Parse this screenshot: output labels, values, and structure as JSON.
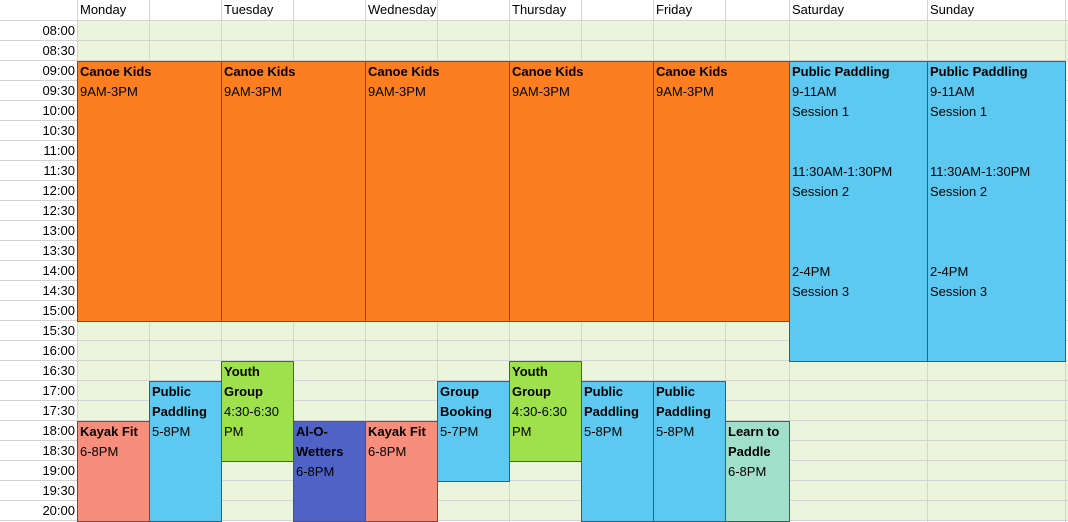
{
  "days": [
    "Monday",
    "Tuesday",
    "Wednesday",
    "Thursday",
    "Friday",
    "Saturday",
    "Sunday"
  ],
  "times": [
    "08:00",
    "08:30",
    "09:00",
    "09:30",
    "10:00",
    "10:30",
    "11:00",
    "11:30",
    "12:00",
    "12:30",
    "13:00",
    "13:30",
    "14:00",
    "14:30",
    "15:00",
    "15:30",
    "16:00",
    "16:30",
    "17:00",
    "17:30",
    "18:00",
    "18:30",
    "19:00",
    "19:30",
    "20:00"
  ],
  "colors": {
    "empty_slot": "#ebf5dc",
    "canoe_kids": "#fb7f21",
    "public_paddling": "#5dc9f1",
    "youth_group": "#9fe04d",
    "kayak_fit": "#f78e7c",
    "alo_wetters": "#4f62c6",
    "learn_to_paddle": "#a0dfca",
    "group_booking": "#5dc9f1"
  },
  "events": {
    "canoe_mon": {
      "title": "Canoe Kids",
      "time": "9AM-3PM"
    },
    "canoe_tue": {
      "title": "Canoe Kids",
      "time": "9AM-3PM"
    },
    "canoe_wed": {
      "title": "Canoe Kids",
      "time": "9AM-3PM"
    },
    "canoe_thu": {
      "title": "Canoe Kids",
      "time": "9AM-3PM"
    },
    "canoe_fri": {
      "title": "Canoe Kids",
      "time": "9AM-3PM"
    },
    "pp_sat": {
      "title": "Public Paddling",
      "s1_time": "9-11AM",
      "s1": "Session 1",
      "s2_time": "11:30AM-1:30PM",
      "s2": "Session 2",
      "s3_time": "2-4PM",
      "s3": "Session 3"
    },
    "pp_sun": {
      "title": "Public Paddling",
      "s1_time": "9-11AM",
      "s1": "Session 1",
      "s2_time": "11:30AM-1:30PM",
      "s2": "Session 2",
      "s3_time": "2-4PM",
      "s3": "Session 3"
    },
    "kayak_mon": {
      "title": "Kayak Fit",
      "time": "6-8PM"
    },
    "pp_mon": {
      "title_line1": "Public",
      "title_line2": "Paddling",
      "time": "5-8PM"
    },
    "youth_tue": {
      "title_line1": "Youth",
      "title_line2": "Group",
      "time_line1": "4:30-6:30",
      "time_line2": "PM"
    },
    "alo_tue": {
      "title_line1": "Al-O-",
      "title_line2": "Wetters",
      "time": "6-8PM"
    },
    "kayak_wed": {
      "title": "Kayak Fit",
      "time": "6-8PM"
    },
    "group_wed": {
      "title_line1": "Group",
      "title_line2": "Booking",
      "time": "5-7PM"
    },
    "youth_thu": {
      "title_line1": "Youth",
      "title_line2": "Group",
      "time_line1": "4:30-6:30",
      "time_line2": "PM"
    },
    "pp_thu": {
      "title_line1": "Public",
      "title_line2": "Paddling",
      "time": "5-8PM"
    },
    "pp_fri": {
      "title_line1": "Public",
      "title_line2": "Paddling",
      "time": "5-8PM"
    },
    "learn_fri": {
      "title_line1": "Learn to",
      "title_line2": "Paddle",
      "time": "6-8PM"
    }
  }
}
